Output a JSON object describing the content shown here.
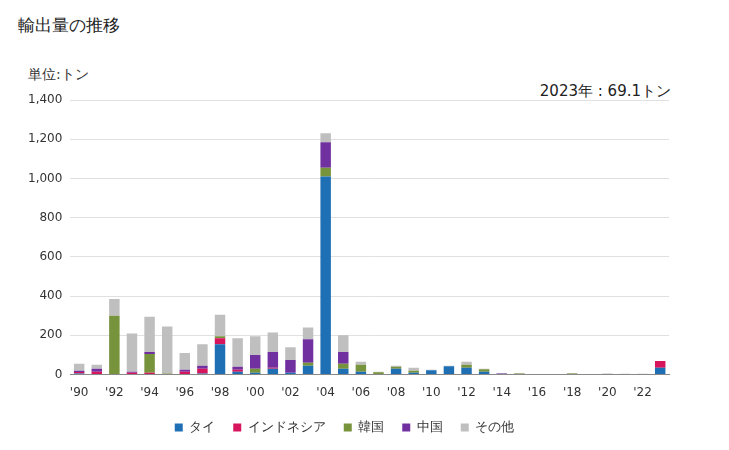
{
  "chart_data": {
    "type": "bar",
    "title": "輸出量の推移",
    "ylabel": "単位:トン",
    "annotations": [
      "2023年 : 69.1トン"
    ],
    "stacked": true,
    "grid": true,
    "legend": "bottom",
    "categories": [
      "'90",
      null,
      "'92",
      null,
      "'94",
      null,
      "'96",
      null,
      "'98",
      null,
      "'00",
      null,
      "'02",
      null,
      "'04",
      null,
      "'06",
      null,
      "'08",
      null,
      "'10",
      null,
      "'12",
      null,
      "'14",
      null,
      "'16",
      null,
      "'18",
      null,
      "'20",
      null,
      "'22",
      null
    ],
    "ylim": [
      0,
      1400
    ],
    "yticks": [
      0,
      200,
      400,
      600,
      800,
      {
        "value": 1000,
        "label": "1,000"
      },
      {
        "value": 1200,
        "label": "1,200"
      },
      {
        "value": 1400,
        "label": "1,400"
      }
    ],
    "series": [
      {
        "name": "タイ",
        "color": "#1f6fb4",
        "values": [
          5,
          0,
          0,
          0,
          0,
          0,
          0,
          5,
          155,
          15,
          10,
          30,
          10,
          45,
          1010,
          30,
          15,
          0,
          30,
          10,
          22,
          42,
          35,
          15,
          0,
          0,
          0,
          0,
          0,
          0,
          0,
          0,
          0,
          35
        ]
      },
      {
        "name": "インドネシア",
        "color": "#d6155c",
        "values": [
          8,
          15,
          0,
          10,
          10,
          0,
          15,
          25,
          30,
          10,
          0,
          5,
          0,
          0,
          0,
          0,
          0,
          0,
          0,
          0,
          0,
          0,
          0,
          0,
          0,
          0,
          0,
          0,
          0,
          0,
          0,
          0,
          0,
          34.1
        ]
      },
      {
        "name": "韓国",
        "color": "#77933c",
        "values": [
          0,
          0,
          300,
          0,
          95,
          5,
          0,
          0,
          10,
          0,
          20,
          0,
          0,
          15,
          45,
          25,
          35,
          12,
          10,
          10,
          0,
          0,
          15,
          12,
          0,
          5,
          0,
          0,
          5,
          0,
          0,
          0,
          0,
          0
        ]
      },
      {
        "name": "中国",
        "color": "#7030a0",
        "values": [
          7,
          15,
          0,
          5,
          10,
          0,
          10,
          15,
          0,
          15,
          70,
          80,
          65,
          120,
          130,
          60,
          0,
          0,
          0,
          0,
          0,
          0,
          0,
          0,
          5,
          0,
          0,
          0,
          0,
          0,
          3,
          0,
          0,
          0
        ]
      },
      {
        "name": "その他",
        "color": "#bfbfbf",
        "values": [
          35,
          20,
          85,
          195,
          180,
          240,
          85,
          110,
          110,
          145,
          95,
          100,
          65,
          60,
          45,
          85,
          15,
          3,
          5,
          15,
          3,
          3,
          15,
          3,
          3,
          3,
          3,
          3,
          3,
          3,
          2,
          4,
          4,
          0
        ]
      }
    ]
  }
}
